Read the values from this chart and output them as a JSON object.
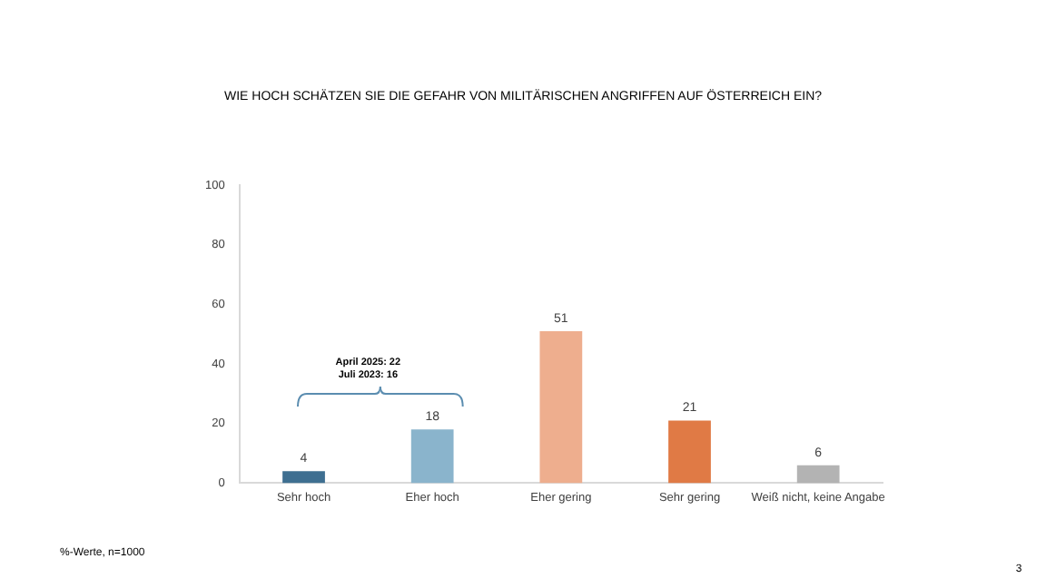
{
  "chart_data": {
    "type": "bar",
    "title": "WIE HOCH SCHÄTZEN SIE DIE GEFAHR VON MILITÄRISCHEN ANGRIFFEN AUF ÖSTERREICH EIN?",
    "categories": [
      "Sehr hoch",
      "Eher hoch",
      "Eher gering",
      "Sehr gering",
      "Weiß nicht, keine Angabe"
    ],
    "values": [
      4,
      18,
      51,
      21,
      6
    ],
    "colors": [
      "#3e6f91",
      "#8ab4cc",
      "#eeae8e",
      "#e07a45",
      "#b3b3b3"
    ],
    "ylim": [
      0,
      100
    ],
    "yticks": [
      0,
      20,
      40,
      60,
      80,
      100
    ],
    "grid": false,
    "legend": false,
    "data_labels": true,
    "annotations": [
      "April 2025: 22",
      "Juli 2023: 16",
      "%-Werte, n=1000",
      "3"
    ]
  }
}
